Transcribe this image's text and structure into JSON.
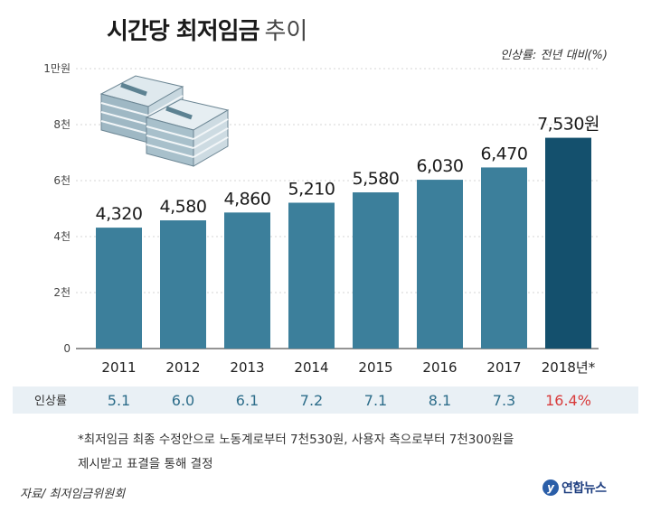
{
  "title": {
    "bold": "시간당 최저임금",
    "light": "추이"
  },
  "rate_note": "인상률: 전년 대비(%)",
  "colors": {
    "bar": "#3c7f9b",
    "bar_highlight": "#14506d",
    "rate_normal": "#2d6d8a",
    "rate_highlight": "#d83b3b",
    "rate_bg": "#e9f0f5"
  },
  "chart_data": {
    "type": "bar",
    "categories": [
      "2011",
      "2012",
      "2013",
      "2014",
      "2015",
      "2016",
      "2017",
      "2018년*"
    ],
    "values": [
      4320,
      4580,
      4860,
      5210,
      5580,
      6030,
      6470,
      7530
    ],
    "value_labels": [
      "4,320",
      "4,580",
      "4,860",
      "5,210",
      "5,580",
      "6,030",
      "6,470",
      "7,530원"
    ],
    "ylim": [
      0,
      10000
    ],
    "yticks": [
      {
        "value": 0,
        "label": "0"
      },
      {
        "value": 2000,
        "label": "2천"
      },
      {
        "value": 4000,
        "label": "4천"
      },
      {
        "value": 6000,
        "label": "6천"
      },
      {
        "value": 8000,
        "label": "8천"
      },
      {
        "value": 10000,
        "label": "1만원"
      }
    ],
    "grid": true,
    "highlight_index": 7,
    "rate_label": "인상률",
    "rates": [
      "5.1",
      "6.0",
      "6.1",
      "7.2",
      "7.1",
      "8.1",
      "7.3",
      "16.4%"
    ]
  },
  "icon": "money-stack-icon",
  "footnote": {
    "line1": "*최저임금 최종 수정안으로 노동계로부터 7천530원, 사용자 측으로부터 7천300원을",
    "line2": "제시받고 표결을 통해 결정"
  },
  "source": "자료/ 최저임금위원회",
  "brand": {
    "logo_letter": "y",
    "name": "연합뉴스"
  }
}
